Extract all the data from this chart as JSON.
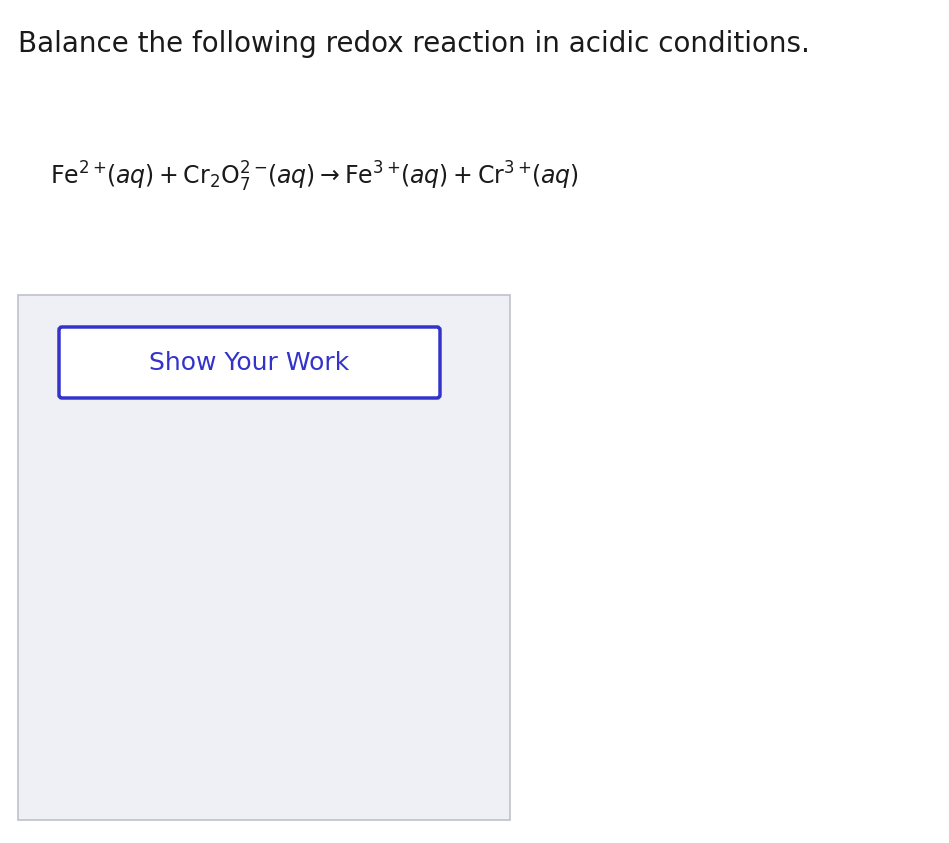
{
  "background_color": "#ffffff",
  "title_text": "Balance the following redox reaction in acidic conditions.",
  "title_fontsize": 20,
  "title_color": "#1a1a1a",
  "equation_text": "$\\mathrm{Fe}^{2+}\\!(aq) + \\mathrm{Cr_2O_7^{2-}}\\!(aq) \\rightarrow \\mathrm{Fe}^{3+}\\!(aq) + \\mathrm{Cr}^{3+}\\!(aq)$",
  "equation_fontsize": 17,
  "equation_color": "#1a1a1a",
  "outer_box_color": "#c0c0cc",
  "outer_box_bg": "#eef0f5",
  "inner_box_border_color": "#3333cc",
  "inner_box_bg": "#ffffff",
  "button_text": "Show Your Work",
  "button_text_color": "#3333cc",
  "button_fontsize": 18
}
